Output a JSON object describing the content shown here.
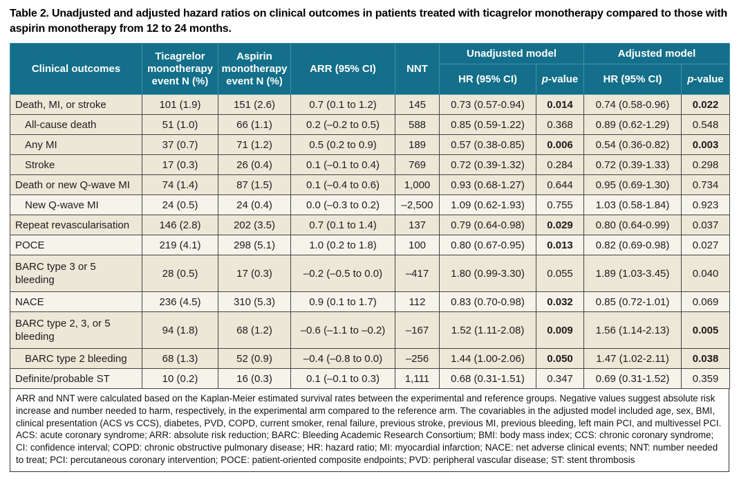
{
  "caption": "Table 2. Unadjusted and adjusted hazard ratios on clinical outcomes in patients treated with ticagrelor monotherapy compared to those with aspirin monotherapy from 12 to 24 months.",
  "colors": {
    "header_teal": "#136F8A",
    "header_divider": "#4093AB",
    "row_cream": "#EDE7D8",
    "row_light": "#F6F3EA",
    "grid_line": "#434343"
  },
  "table": {
    "headers": {
      "clinical_outcomes": "Clinical outcomes",
      "ticagrelor": "Ticagrelor\nmonotherapy\nevent N (%)",
      "aspirin": "Aspirin\nmonotherapy\nevent N (%)",
      "arr": "ARR (95% CI)",
      "nnt": "NNT",
      "unadjusted_model": "Unadjusted model",
      "adjusted_model": "Adjusted model",
      "hr": "HR (95% CI)",
      "p_italic": "p",
      "p_rest": "-value"
    },
    "rows": [
      {
        "outcome": "Death, MI, or stroke",
        "indent": false,
        "tall": false,
        "shade": "cream",
        "ticagrelor": "101 (1.9)",
        "aspirin": "151 (2.6)",
        "arr": "0.7 (0.1 to 1.2)",
        "nnt": "145",
        "unadjusted_hr": "0.73 (0.57-0.94)",
        "unadjusted_p": "0.014",
        "unadjusted_p_bold": true,
        "adjusted_hr": "0.74 (0.58-0.96)",
        "adjusted_p": "0.022",
        "adjusted_p_bold": true
      },
      {
        "outcome": "All-cause death",
        "indent": true,
        "tall": false,
        "shade": "cream",
        "ticagrelor": "51 (1.0)",
        "aspirin": "66 (1.1)",
        "arr": "0.2 (–0.2 to 0.5)",
        "nnt": "588",
        "unadjusted_hr": "0.85 (0.59-1.22)",
        "unadjusted_p": "0.368",
        "unadjusted_p_bold": false,
        "adjusted_hr": "0.89 (0.62-1.29)",
        "adjusted_p": "0.548",
        "adjusted_p_bold": false
      },
      {
        "outcome": "Any MI",
        "indent": true,
        "tall": false,
        "shade": "cream",
        "ticagrelor": "37 (0.7)",
        "aspirin": "71 (1.2)",
        "arr": "0.5 (0.2 to 0.9)",
        "nnt": "189",
        "unadjusted_hr": "0.57 (0.38-0.85)",
        "unadjusted_p": "0.006",
        "unadjusted_p_bold": true,
        "adjusted_hr": "0.54 (0.36-0.82)",
        "adjusted_p": "0.003",
        "adjusted_p_bold": true
      },
      {
        "outcome": "Stroke",
        "indent": true,
        "tall": false,
        "shade": "cream",
        "ticagrelor": "17 (0.3)",
        "aspirin": "26 (0.4)",
        "arr": "0.1 (–0.1 to 0.4)",
        "nnt": "769",
        "unadjusted_hr": "0.72 (0.39-1.32)",
        "unadjusted_p": "0.284",
        "unadjusted_p_bold": false,
        "adjusted_hr": "0.72 (0.39-1.33)",
        "adjusted_p": "0.298",
        "adjusted_p_bold": false
      },
      {
        "outcome": "Death or new Q-wave MI",
        "indent": false,
        "tall": false,
        "shade": "cream",
        "ticagrelor": "74 (1.4)",
        "aspirin": "87 (1.5)",
        "arr": "0.1 (–0.4 to 0.6)",
        "nnt": "1,000",
        "unadjusted_hr": "0.93 (0.68-1.27)",
        "unadjusted_p": "0.644",
        "unadjusted_p_bold": false,
        "adjusted_hr": "0.95 (0.69-1.30)",
        "adjusted_p": "0.734",
        "adjusted_p_bold": false
      },
      {
        "outcome": "New Q-wave MI",
        "indent": true,
        "tall": false,
        "shade": "light",
        "ticagrelor": "24 (0.5)",
        "aspirin": "24 (0.4)",
        "arr": "0.0 (–0.3 to 0.2)",
        "nnt": "–2,500",
        "unadjusted_hr": "1.09 (0.62-1.93)",
        "unadjusted_p": "0.755",
        "unadjusted_p_bold": false,
        "adjusted_hr": "1.03 (0.58-1.84)",
        "adjusted_p": "0.923",
        "adjusted_p_bold": false
      },
      {
        "outcome": "Repeat revascularisation",
        "indent": false,
        "tall": false,
        "shade": "cream",
        "ticagrelor": "146 (2.8)",
        "aspirin": "202 (3.5)",
        "arr": "0.7 (0.1 to 1.4)",
        "nnt": "137",
        "unadjusted_hr": "0.79 (0.64-0.98)",
        "unadjusted_p": "0.029",
        "unadjusted_p_bold": true,
        "adjusted_hr": "0.80 (0.64-0.99)",
        "adjusted_p": "0.037",
        "adjusted_p_bold": false
      },
      {
        "outcome": "POCE",
        "indent": false,
        "tall": false,
        "shade": "light",
        "ticagrelor": "219 (4.1)",
        "aspirin": "298 (5.1)",
        "arr": "1.0 (0.2 to 1.8)",
        "nnt": "100",
        "unadjusted_hr": "0.80 (0.67-0.95)",
        "unadjusted_p": "0.013",
        "unadjusted_p_bold": true,
        "adjusted_hr": "0.82 (0.69-0.98)",
        "adjusted_p": "0.027",
        "adjusted_p_bold": false
      },
      {
        "outcome": "BARC type 3 or 5\nbleeding",
        "indent": false,
        "tall": true,
        "shade": "cream",
        "ticagrelor": "28 (0.5)",
        "aspirin": "17 (0.3)",
        "arr": "–0.2 (–0.5 to 0.0)",
        "nnt": "–417",
        "unadjusted_hr": "1.80 (0.99-3.30)",
        "unadjusted_p": "0.055",
        "unadjusted_p_bold": false,
        "adjusted_hr": "1.89 (1.03-3.45)",
        "adjusted_p": "0.040",
        "adjusted_p_bold": false
      },
      {
        "outcome": "NACE",
        "indent": false,
        "tall": false,
        "shade": "light",
        "ticagrelor": "236 (4.5)",
        "aspirin": "310 (5.3)",
        "arr": "0.9 (0.1 to 1.7)",
        "nnt": "112",
        "unadjusted_hr": "0.83 (0.70-0.98)",
        "unadjusted_p": "0.032",
        "unadjusted_p_bold": true,
        "adjusted_hr": "0.85 (0.72-1.01)",
        "adjusted_p": "0.069",
        "adjusted_p_bold": false
      },
      {
        "outcome": "BARC type 2, 3, or 5\nbleeding",
        "indent": false,
        "tall": true,
        "shade": "cream",
        "ticagrelor": "94 (1.8)",
        "aspirin": "68 (1.2)",
        "arr": "–0.6 (–1.1 to –0.2)",
        "nnt": "–167",
        "unadjusted_hr": "1.52 (1.11-2.08)",
        "unadjusted_p": "0.009",
        "unadjusted_p_bold": true,
        "adjusted_hr": "1.56 (1.14-2.13)",
        "adjusted_p": "0.005",
        "adjusted_p_bold": true
      },
      {
        "outcome": "BARC type 2 bleeding",
        "indent": true,
        "tall": false,
        "shade": "cream",
        "ticagrelor": "68 (1.3)",
        "aspirin": "52 (0.9)",
        "arr": "–0.4 (–0.8 to 0.0)",
        "nnt": "–256",
        "unadjusted_hr": "1.44 (1.00-2.06)",
        "unadjusted_p": "0.050",
        "unadjusted_p_bold": true,
        "adjusted_hr": "1.47 (1.02-2.11)",
        "adjusted_p": "0.038",
        "adjusted_p_bold": true
      },
      {
        "outcome": "Definite/probable ST",
        "indent": false,
        "tall": false,
        "shade": "light",
        "ticagrelor": "10 (0.2)",
        "aspirin": "16 (0.3)",
        "arr": "0.1 (–0.1 to 0.3)",
        "nnt": "1,111",
        "unadjusted_hr": "0.68 (0.31-1.51)",
        "unadjusted_p": "0.347",
        "unadjusted_p_bold": false,
        "adjusted_hr": "0.69 (0.31-1.52)",
        "adjusted_p": "0.359",
        "adjusted_p_bold": false
      }
    ]
  },
  "footnote": "ARR and NNT were calculated based on the Kaplan-Meier estimated survival rates between the experimental and reference groups. Negative values suggest absolute risk increase and number needed to harm, respectively, in the experimental arm compared to the reference arm. The covariables in the adjusted model included age, sex, BMI, clinical presentation (ACS vs CCS), diabetes, PVD, COPD, current smoker, renal failure, previous stroke, previous MI, previous bleeding, left main PCI, and multivessel PCI. ACS: acute coronary syndrome; ARR: absolute risk reduction; BARC: Bleeding Academic Research Consortium; BMI: body mass index; CCS: chronic coronary syndrome; CI: confidence interval; COPD: chronic obstructive pulmonary disease; HR: hazard ratio; MI: myocardial infarction; NACE: net adverse clinical events; NNT: number needed to treat; PCI: percutaneous coronary intervention; POCE: patient-oriented composite endpoints; PVD: peripheral vascular disease; ST: stent thrombosis"
}
